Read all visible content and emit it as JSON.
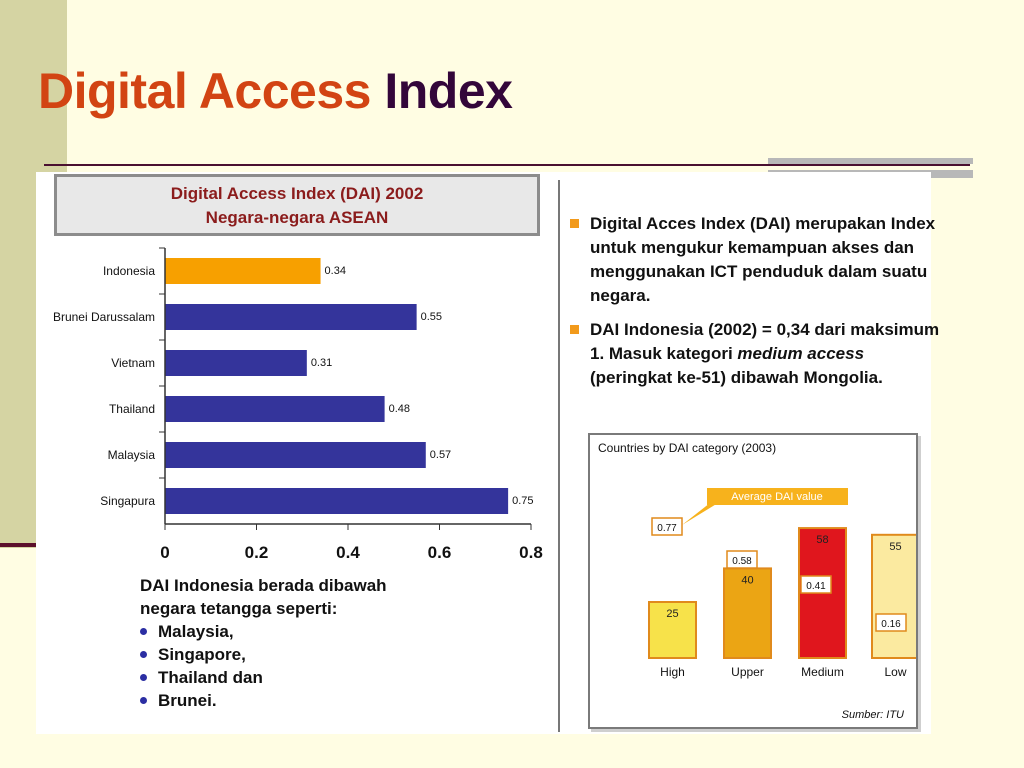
{
  "slide": {
    "title_part1": "Digital Access",
    "title_part2": "Index"
  },
  "chart_title": {
    "line1": "Digital Access Index (DAI) 2002",
    "line2": "Negara-negara ASEAN"
  },
  "chart_data": [
    {
      "type": "bar",
      "orientation": "horizontal",
      "title": "Digital Access Index (DAI) 2002 Negara-negara ASEAN",
      "categories": [
        "Indonesia",
        "Brunei Darussalam",
        "Vietnam",
        "Thailand",
        "Malaysia",
        "Singapura"
      ],
      "values": [
        0.34,
        0.55,
        0.31,
        0.48,
        0.57,
        0.75
      ],
      "value_labels": [
        "0.34",
        "0.55",
        "0.31",
        "0.48",
        "0.57",
        "0.75"
      ],
      "xlim": [
        0,
        0.8
      ],
      "xticks": [
        "0",
        "0.2",
        "0.4",
        "0.6",
        "0.8"
      ],
      "colors": [
        "#f7a000",
        "#34349b",
        "#34349b",
        "#34349b",
        "#34349b",
        "#34349b"
      ],
      "grid": false
    },
    {
      "type": "bar",
      "title": "Countries by DAI category (2003)",
      "categories": [
        "High",
        "Upper",
        "Medium",
        "Low"
      ],
      "values": [
        25,
        40,
        58,
        55
      ],
      "average_dai": [
        "0.77",
        "0.58",
        "0.41",
        "0.16"
      ],
      "annotation": "Average DAI value",
      "colors": [
        "#f7e24a",
        "#eba514",
        "#e0161d",
        "#fbeaa0"
      ],
      "source": "Sumber: ITU"
    }
  ],
  "note": {
    "line1": "DAI Indonesia berada dibawah",
    "line2": "negara tetangga seperti:",
    "items": [
      "Malaysia,",
      "Singapore,",
      "Thailand dan",
      "Brunei."
    ]
  },
  "right_text": {
    "item1": "Digital Acces Index (DAI) merupakan Index untuk mengukur kemampuan akses dan menggunakan ICT penduduk dalam suatu negara.",
    "item2_part1": "DAI Indonesia (2002) = 0,34 dari maksimum 1. Masuk kategori ",
    "item2_em": "medium access",
    "item2_part2": " (peringkat ke-51) dibawah Mongolia."
  },
  "colors": {
    "accent_orange": "#d24413",
    "title_dark": "#33063a",
    "bar_blue": "#34349b",
    "bar_orange": "#f7a000"
  }
}
